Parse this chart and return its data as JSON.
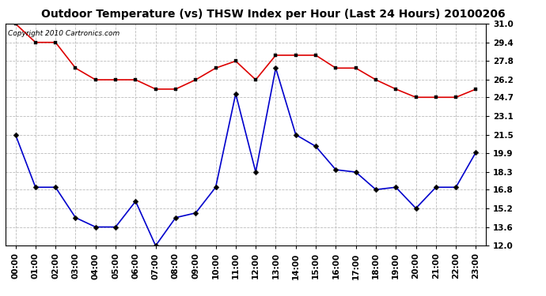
{
  "title": "Outdoor Temperature (vs) THSW Index per Hour (Last 24 Hours) 20100206",
  "copyright_text": "Copyright 2010 Cartronics.com",
  "hours": [
    "00:00",
    "01:00",
    "02:00",
    "03:00",
    "04:00",
    "05:00",
    "06:00",
    "07:00",
    "08:00",
    "09:00",
    "10:00",
    "11:00",
    "12:00",
    "13:00",
    "14:00",
    "15:00",
    "16:00",
    "17:00",
    "18:00",
    "19:00",
    "20:00",
    "21:00",
    "22:00",
    "23:00"
  ],
  "red_data": [
    31.0,
    29.4,
    29.4,
    27.2,
    26.2,
    26.2,
    26.2,
    25.4,
    25.4,
    26.2,
    27.2,
    27.8,
    26.2,
    28.3,
    28.3,
    28.3,
    27.2,
    27.2,
    26.2,
    25.4,
    24.7,
    24.7,
    24.7,
    25.4
  ],
  "blue_data": [
    21.5,
    17.0,
    17.0,
    14.4,
    13.6,
    13.6,
    15.8,
    12.0,
    14.4,
    14.8,
    17.0,
    25.0,
    18.3,
    27.2,
    21.5,
    20.5,
    18.5,
    18.3,
    16.8,
    17.0,
    15.2,
    17.0,
    17.0,
    20.0
  ],
  "ylim_min": 12.0,
  "ylim_max": 31.0,
  "yticks": [
    12.0,
    13.6,
    15.2,
    16.8,
    18.3,
    19.9,
    21.5,
    23.1,
    24.7,
    26.2,
    27.8,
    29.4,
    31.0
  ],
  "red_color": "#dd0000",
  "blue_color": "#0000cc",
  "background_color": "#ffffff",
  "plot_bg_color": "#ffffff",
  "grid_color": "#bbbbbb",
  "title_fontsize": 10,
  "copyright_fontsize": 6.5,
  "tick_fontsize": 7.5
}
